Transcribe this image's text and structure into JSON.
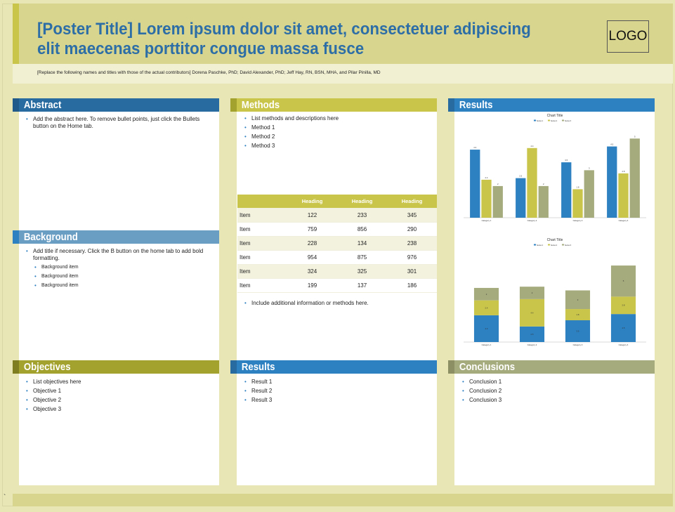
{
  "poster": {
    "title": "[Poster Title] Lorem ipsum dolor sit amet, consectetuer adipiscing elit maecenas porttitor congue massa fusce",
    "logo": "LOGO",
    "contributors": "[Replace the following names and titles with those of the actual contributors] Dorena Paschke, PhD; David Alexander, PhD;  Jeff Hay, RN, BSN, MHA, and Pilar Pinilla, MD",
    "stray_mark": "`"
  },
  "colors": {
    "background": "#e8e6b4",
    "title_band": "#d8d58e",
    "title_text": "#2d6ea7",
    "blue": "#2e81c1",
    "dark_blue": "#276ba0",
    "light_blue": "#6b9ec3",
    "olive": "#c9c54b",
    "dark_olive": "#a3a22e",
    "sage": "#a6ab7d"
  },
  "abstract": {
    "heading": "Abstract",
    "items": [
      "Add the abstract here. To remove bullet points, just click the Bullets button on the Home tab."
    ]
  },
  "background": {
    "heading": "Background",
    "items": [
      "Add title if necessary. Click the B button on the home tab to add bold formatting."
    ],
    "subitems": [
      "Background item",
      "Background item",
      "Background item"
    ]
  },
  "objectives": {
    "heading": "Objectives",
    "items": [
      "List objectives here",
      "Objective 1",
      "Objective 2",
      "Objective 3"
    ]
  },
  "methods": {
    "heading": "Methods",
    "items": [
      "List methods and descriptions here",
      "Method 1",
      "Method 2",
      "Method 3"
    ],
    "table": {
      "headers": [
        "",
        "Heading",
        "Heading",
        "Heading"
      ],
      "rows": [
        [
          "Item",
          "122",
          "233",
          "345"
        ],
        [
          "Item",
          "759",
          "856",
          "290"
        ],
        [
          "Item",
          "228",
          "134",
          "238"
        ],
        [
          "Item",
          "954",
          "875",
          "976"
        ],
        [
          "Item",
          "324",
          "325",
          "301"
        ],
        [
          "Item",
          "199",
          "137",
          "186"
        ]
      ]
    },
    "after_items": [
      "Include additional information or methods here."
    ]
  },
  "results_bottom": {
    "heading": "Results",
    "items": [
      "Result 1",
      "Result 2",
      "Result 3"
    ]
  },
  "results_top": {
    "heading": "Results"
  },
  "conclusions": {
    "heading": "Conclusions",
    "items": [
      "Conclusion 1",
      "Conclusion 2",
      "Conclusion 3"
    ]
  },
  "chart_data": [
    {
      "type": "bar",
      "title": "Chart Title",
      "legend": [
        "Series 1",
        "Series 2",
        "Series 3"
      ],
      "legend_position": "top",
      "categories": [
        "Category 1",
        "Category 2",
        "Category 3",
        "Category 4"
      ],
      "series": [
        {
          "name": "Series 1",
          "values": [
            4.3,
            2.5,
            3.5,
            4.5
          ],
          "color": "#2e81c1"
        },
        {
          "name": "Series 2",
          "values": [
            2.4,
            4.4,
            1.8,
            2.8
          ],
          "color": "#c9c54b"
        },
        {
          "name": "Series 3",
          "values": [
            2,
            2,
            3,
            5
          ],
          "color": "#a6ab7d"
        }
      ],
      "ylim": [
        0,
        5.5
      ],
      "grid": false
    },
    {
      "type": "bar",
      "stacked": true,
      "title": "Chart Title",
      "legend": [
        "Series 1",
        "Series 2",
        "Series 3"
      ],
      "legend_position": "top",
      "categories": [
        "Category 1",
        "Category 2",
        "Category 3",
        "Category 4"
      ],
      "series": [
        {
          "name": "Series 1",
          "values": [
            4.3,
            2.5,
            3.5,
            4.5
          ],
          "color": "#2e81c1"
        },
        {
          "name": "Series 2",
          "values": [
            2.4,
            4.4,
            1.8,
            2.8
          ],
          "color": "#c9c54b"
        },
        {
          "name": "Series 3",
          "values": [
            2,
            2,
            3,
            5
          ],
          "color": "#a6ab7d"
        }
      ],
      "ylim": [
        0,
        14
      ],
      "grid": false
    }
  ]
}
